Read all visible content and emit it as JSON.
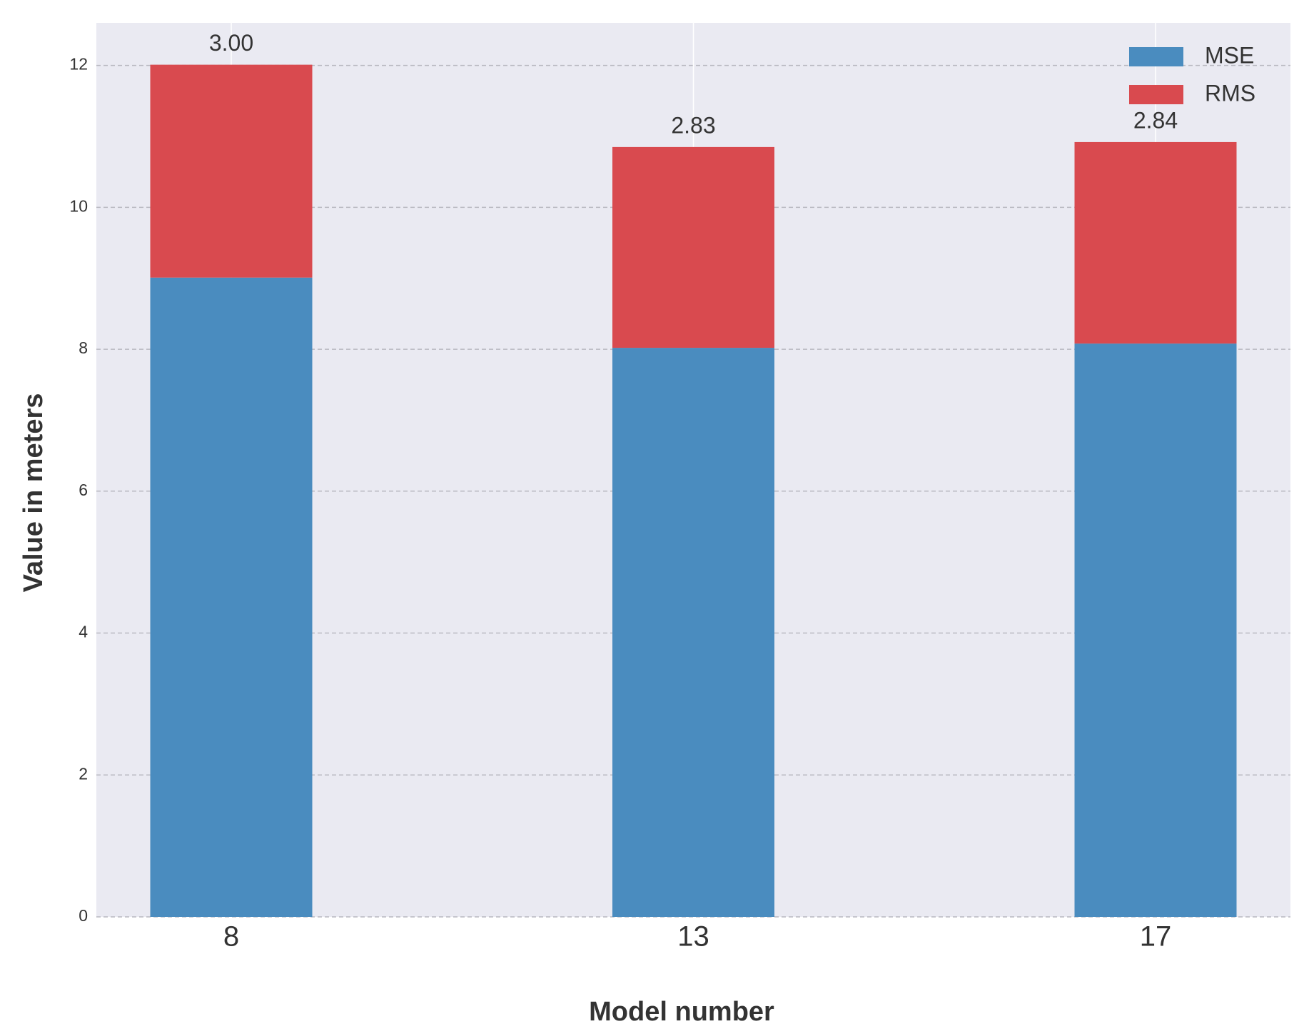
{
  "chart_data": {
    "type": "stacked-bar",
    "x_label": "Model number",
    "y_label": "Value in meters",
    "categories": [
      "8",
      "13",
      "17"
    ],
    "series": [
      {
        "name": "MSE",
        "color": "#4a8cbf",
        "values": [
          9.01,
          8.02,
          8.08
        ]
      },
      {
        "name": "RMS",
        "color": "#d94a4f",
        "values": [
          3.0,
          2.83,
          2.84
        ],
        "value_labels": [
          "3.00",
          "2.83",
          "2.84"
        ]
      }
    ],
    "ylim": [
      0,
      12.6
    ],
    "yticks": [
      0,
      2,
      4,
      6,
      8,
      10,
      12
    ],
    "grid": true,
    "legend": "upper right"
  }
}
